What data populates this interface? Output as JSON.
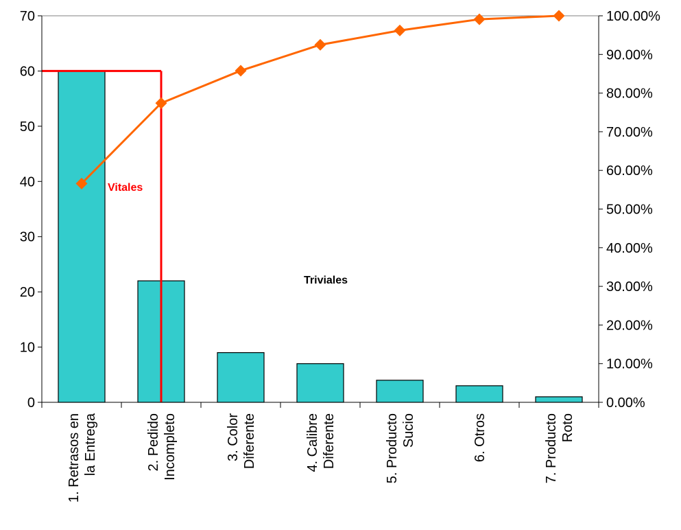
{
  "chart_data": {
    "type": "bar",
    "categories": [
      [
        "1. Retrasos en",
        "la Entrega"
      ],
      [
        "2. Pedido",
        "Incompleto"
      ],
      [
        "3. Color",
        "Diferente"
      ],
      [
        "4. Calibre",
        "Diferente"
      ],
      [
        "5. Producto",
        "Sucio"
      ],
      [
        "6. Otros"
      ],
      [
        "7. Producto",
        "Roto"
      ]
    ],
    "values": [
      60,
      22,
      9,
      7,
      4,
      3,
      1
    ],
    "cumulative_percent": [
      56.6,
      77.4,
      85.8,
      92.5,
      96.2,
      99.1,
      100.0
    ],
    "ylim": [
      0,
      70
    ],
    "y_ticks": [
      "0",
      "10",
      "20",
      "30",
      "40",
      "50",
      "60",
      "70"
    ],
    "y2lim": [
      0,
      100
    ],
    "y2_ticks": [
      "0.00%",
      "10.00%",
      "20.00%",
      "30.00%",
      "40.00%",
      "50.00%",
      "60.00%",
      "70.00%",
      "80.00%",
      "90.00%",
      "100.00%"
    ],
    "bar_color": "#33CCCC",
    "line_color": "#FF6600",
    "cutoff": {
      "y_value": 60,
      "after_category_index": 1,
      "color": "#FF0000"
    },
    "annotations": {
      "vital": {
        "text": "Vitales",
        "color": "#FF0000"
      },
      "trivial": {
        "text": "Triviales",
        "color": "#000000"
      }
    },
    "grid": false,
    "legend": "none"
  }
}
